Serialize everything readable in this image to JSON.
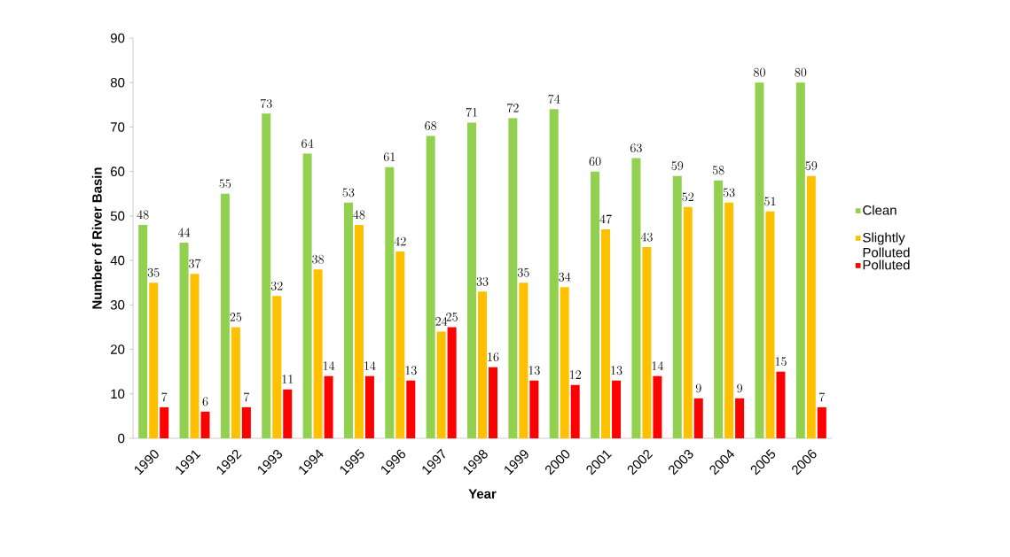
{
  "chart_data": {
    "type": "bar",
    "xlabel": "Year",
    "ylabel": "Number of River Basin",
    "categories": [
      "1990",
      "1991",
      "1992",
      "1993",
      "1994",
      "1995",
      "1996",
      "1997",
      "1998",
      "1999",
      "2000",
      "2001",
      "2002",
      "2003",
      "2004",
      "2005",
      "2006"
    ],
    "series": [
      {
        "name": "Clean",
        "color": "#92d050",
        "values": [
          48,
          44,
          55,
          73,
          64,
          53,
          61,
          68,
          71,
          72,
          74,
          60,
          63,
          59,
          58,
          80,
          80
        ]
      },
      {
        "name": "Slightly Polluted",
        "color": "#ffc000",
        "values": [
          35,
          37,
          25,
          32,
          38,
          48,
          42,
          24,
          33,
          35,
          34,
          47,
          43,
          52,
          53,
          51,
          59
        ]
      },
      {
        "name": "Polluted",
        "color": "#ff0000",
        "values": [
          7,
          6,
          7,
          11,
          14,
          14,
          13,
          25,
          16,
          13,
          12,
          13,
          14,
          9,
          9,
          15,
          7
        ]
      }
    ],
    "ylim": [
      0,
      90
    ],
    "yticks": [
      0,
      10,
      20,
      30,
      40,
      50,
      60,
      70,
      80,
      90
    ],
    "data_labels": true,
    "legend": "right",
    "grid": false
  }
}
